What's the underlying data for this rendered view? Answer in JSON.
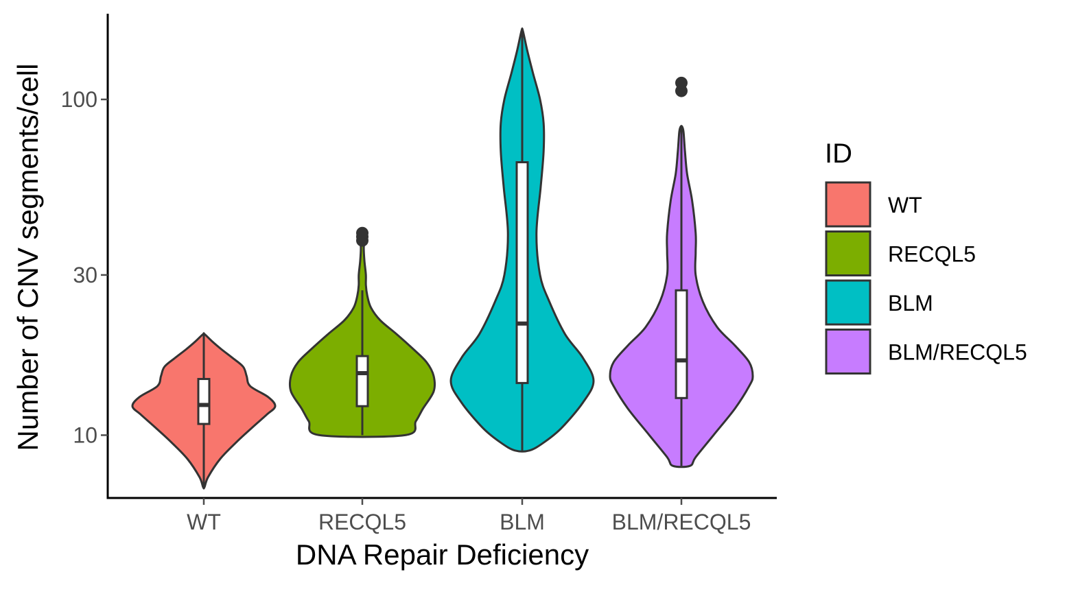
{
  "chart_data": {
    "type": "violin",
    "title": "",
    "xlabel": "DNA Repair Deficiency",
    "ylabel": "Number of CNV segments/cell",
    "y_scale": "log10",
    "ylim": [
      6.5,
      180
    ],
    "y_ticks": [
      10,
      30,
      100
    ],
    "y_tick_labels": [
      "10",
      "30",
      "100"
    ],
    "categories": [
      "WT",
      "RECQL5",
      "BLM",
      "BLM/RECQL5"
    ],
    "legend": {
      "title": "ID",
      "position": "right"
    },
    "grid": false,
    "series": [
      {
        "name": "WT",
        "color": "#F8766D",
        "min": 7,
        "max": 20,
        "q1": 10.8,
        "median": 12.3,
        "q3": 14.7,
        "profile": [
          [
            7,
            0.01
          ],
          [
            7.5,
            0.06
          ],
          [
            8.5,
            0.23
          ],
          [
            9.5,
            0.45
          ],
          [
            10.5,
            0.67
          ],
          [
            11.5,
            0.88
          ],
          [
            12.2,
            1.0
          ],
          [
            13,
            0.9
          ],
          [
            14,
            0.65
          ],
          [
            15,
            0.6
          ],
          [
            16,
            0.55
          ],
          [
            17,
            0.4
          ],
          [
            18,
            0.25
          ],
          [
            19,
            0.12
          ],
          [
            20,
            0.01
          ]
        ],
        "outliers": []
      },
      {
        "name": "RECQL5",
        "color": "#7CAE00",
        "min": 10,
        "max": 27,
        "q1": 12.2,
        "median": 15.3,
        "q3": 17.2,
        "whisker_high": 27,
        "profile": [
          [
            10,
            0.6
          ],
          [
            11,
            0.75
          ],
          [
            12,
            0.85
          ],
          [
            13.5,
            1.0
          ],
          [
            15,
            1.0
          ],
          [
            16.5,
            0.9
          ],
          [
            18,
            0.72
          ],
          [
            20,
            0.48
          ],
          [
            22,
            0.25
          ],
          [
            24,
            0.12
          ],
          [
            26,
            0.07
          ],
          [
            28,
            0.05
          ],
          [
            30,
            0.05
          ],
          [
            33,
            0.03
          ],
          [
            36,
            0.02
          ],
          [
            39,
            0.03
          ],
          [
            40,
            0.01
          ]
        ],
        "outliers": [
          38,
          39,
          40
        ]
      },
      {
        "name": "BLM",
        "color": "#00BFC4",
        "min": 9,
        "max": 160,
        "q1": 14.3,
        "median": 21.5,
        "q3": 65,
        "profile": [
          [
            9,
            0.1
          ],
          [
            9.5,
            0.3
          ],
          [
            10.5,
            0.55
          ],
          [
            12.5,
            0.85
          ],
          [
            14.5,
            1.0
          ],
          [
            17,
            0.85
          ],
          [
            20,
            0.6
          ],
          [
            25,
            0.38
          ],
          [
            30,
            0.25
          ],
          [
            40,
            0.2
          ],
          [
            55,
            0.26
          ],
          [
            70,
            0.3
          ],
          [
            85,
            0.3
          ],
          [
            100,
            0.25
          ],
          [
            120,
            0.15
          ],
          [
            140,
            0.07
          ],
          [
            160,
            0.01
          ]
        ],
        "outliers": []
      },
      {
        "name": "BLM/RECQL5",
        "color": "#C77CFF",
        "min": 8.1,
        "max": 83,
        "q1": 12.9,
        "median": 16.7,
        "q3": 27,
        "outliers": [
          106,
          112
        ],
        "profile": [
          [
            8.1,
            0.12
          ],
          [
            8.6,
            0.2
          ],
          [
            10,
            0.45
          ],
          [
            12,
            0.75
          ],
          [
            14,
            0.95
          ],
          [
            15,
            1.0
          ],
          [
            16.5,
            0.95
          ],
          [
            18.5,
            0.75
          ],
          [
            21,
            0.5
          ],
          [
            25,
            0.3
          ],
          [
            30,
            0.2
          ],
          [
            35,
            0.2
          ],
          [
            40,
            0.2
          ],
          [
            50,
            0.15
          ],
          [
            60,
            0.08
          ],
          [
            70,
            0.05
          ],
          [
            80,
            0.03
          ],
          [
            83,
            0.01
          ]
        ]
      }
    ]
  },
  "style": {
    "outline_color": "#333333",
    "box_fill": "#ffffff",
    "axis_color": "#000000",
    "tick_text_color": "#4d4d4d"
  }
}
